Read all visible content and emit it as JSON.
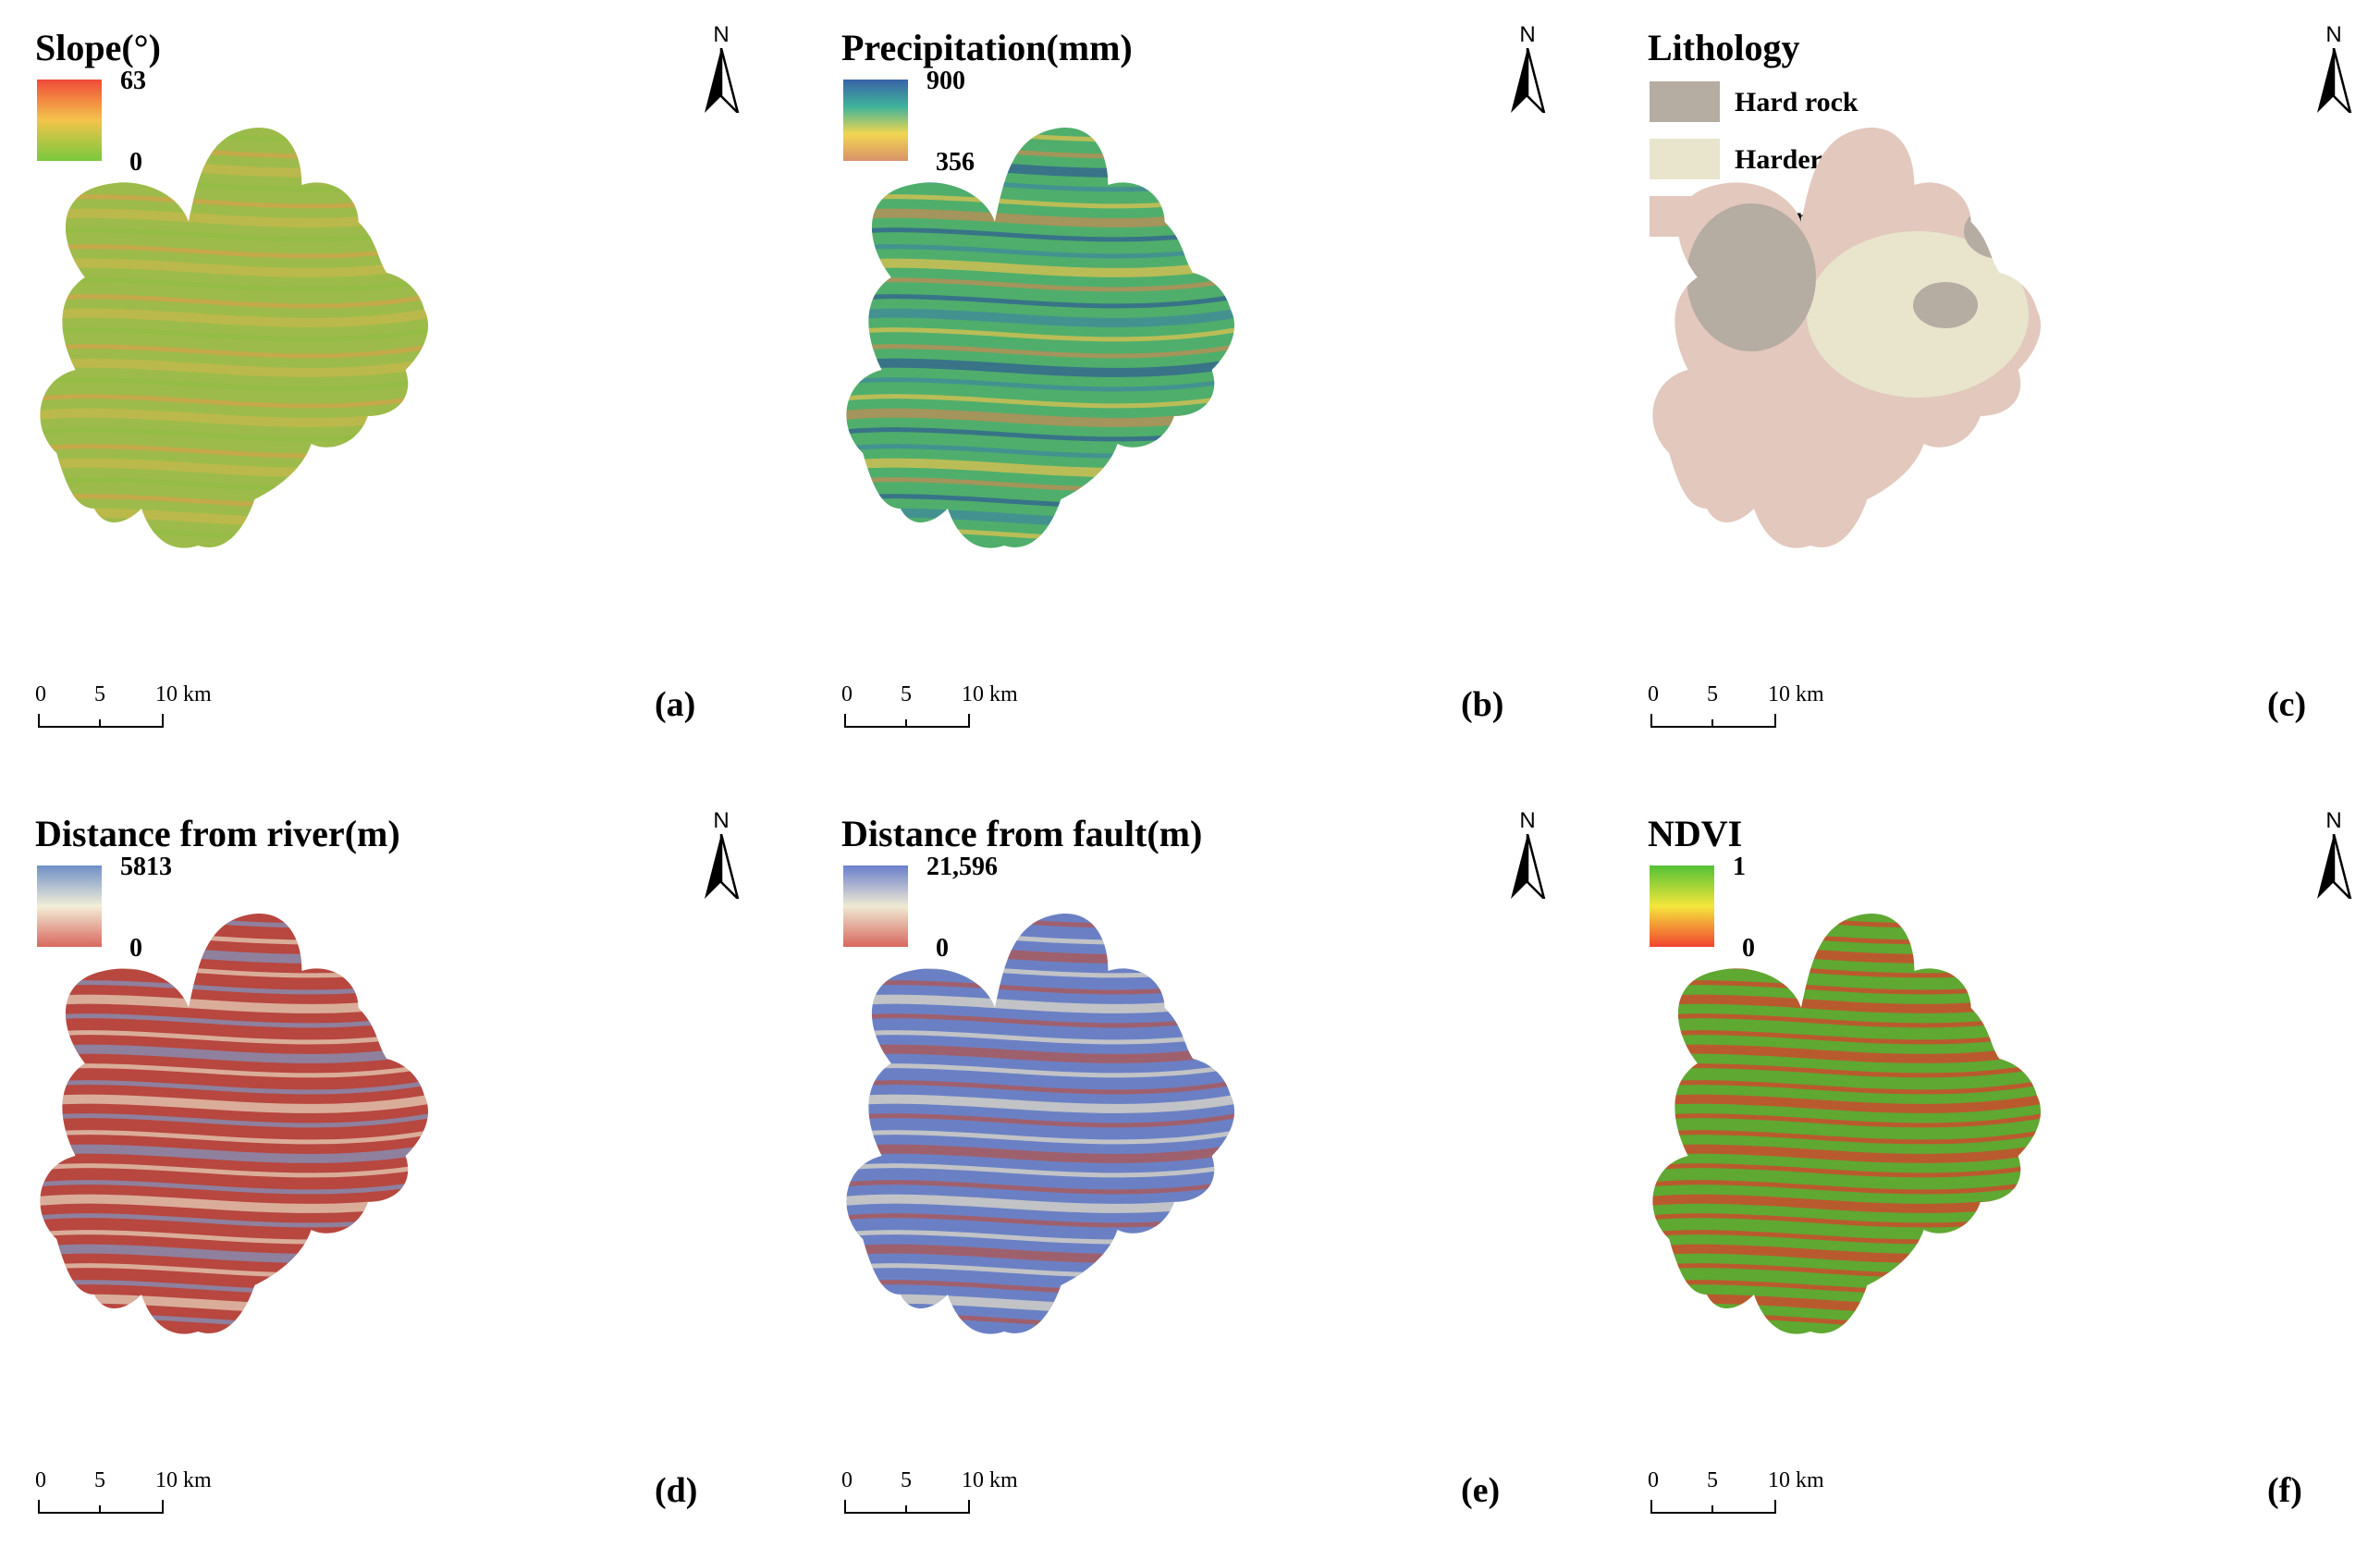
{
  "panels": [
    {
      "id": "a",
      "title": "Slope(°)",
      "legend_type": "gradient",
      "legend_max": "63",
      "legend_min": "0",
      "legend_colors": [
        "#f04a3a",
        "#f3c44a",
        "#79c83e"
      ],
      "map_colors": [
        "#9dbb4a",
        "#c8b84c",
        "#8fbd42",
        "#d5a24a"
      ],
      "panel_label": "(a)",
      "north_label": "N",
      "scale_ticks": [
        "0",
        "5",
        "10 km"
      ]
    },
    {
      "id": "b",
      "title": "Precipitation(mm)",
      "legend_type": "gradient",
      "legend_max": "900",
      "legend_min": "356",
      "legend_colors": [
        "#3a63a8",
        "#3fb39b",
        "#f0d650",
        "#d9926a"
      ],
      "map_colors": [
        "#4fae6b",
        "#3f86a0",
        "#e8c34e",
        "#c88a54",
        "#2f5a94"
      ],
      "panel_label": "(b)",
      "north_label": "N",
      "scale_ticks": [
        "0",
        "5",
        "10 km"
      ]
    },
    {
      "id": "c",
      "title": "Lithology",
      "legend_type": "categorical",
      "categories": [
        {
          "label": "Hard rock",
          "color": "#b5aca2"
        },
        {
          "label": "Harder rock",
          "color": "#e9e4cc"
        },
        {
          "label": "Softer rock",
          "color": "#e2c8bd"
        }
      ],
      "panel_label": "(c)",
      "north_label": "N",
      "scale_ticks": [
        "0",
        "5",
        "10 km"
      ]
    },
    {
      "id": "d",
      "title": "Distance from river(m)",
      "legend_type": "gradient",
      "legend_max": "5813",
      "legend_min": "0",
      "legend_colors": [
        "#6f8fc6",
        "#f3eed8",
        "#d8685d"
      ],
      "map_colors": [
        "#b7473f",
        "#e8d9c2",
        "#7d98c8"
      ],
      "panel_label": "(d)",
      "north_label": "N",
      "scale_ticks": [
        "0",
        "5",
        "10 km"
      ]
    },
    {
      "id": "e",
      "title": "Distance from fault(m)",
      "legend_type": "gradient",
      "legend_max": "21,596",
      "legend_min": "0",
      "legend_colors": [
        "#6b7fcc",
        "#efead4",
        "#d8685d"
      ],
      "map_colors": [
        "#6b80c4",
        "#e6e0c8",
        "#b5524a"
      ],
      "panel_label": "(e)",
      "north_label": "N",
      "scale_ticks": [
        "0",
        "5",
        "10 km"
      ]
    },
    {
      "id": "f",
      "title": "NDVI",
      "legend_type": "gradient",
      "legend_max": "1",
      "legend_min": "0",
      "legend_colors": [
        "#52c136",
        "#f4e63c",
        "#f2442f"
      ],
      "map_colors": [
        "#5fa832",
        "#e0392c"
      ],
      "panel_label": "(f)",
      "north_label": "N",
      "scale_ticks": [
        "0",
        "5",
        "10 km"
      ]
    }
  ]
}
